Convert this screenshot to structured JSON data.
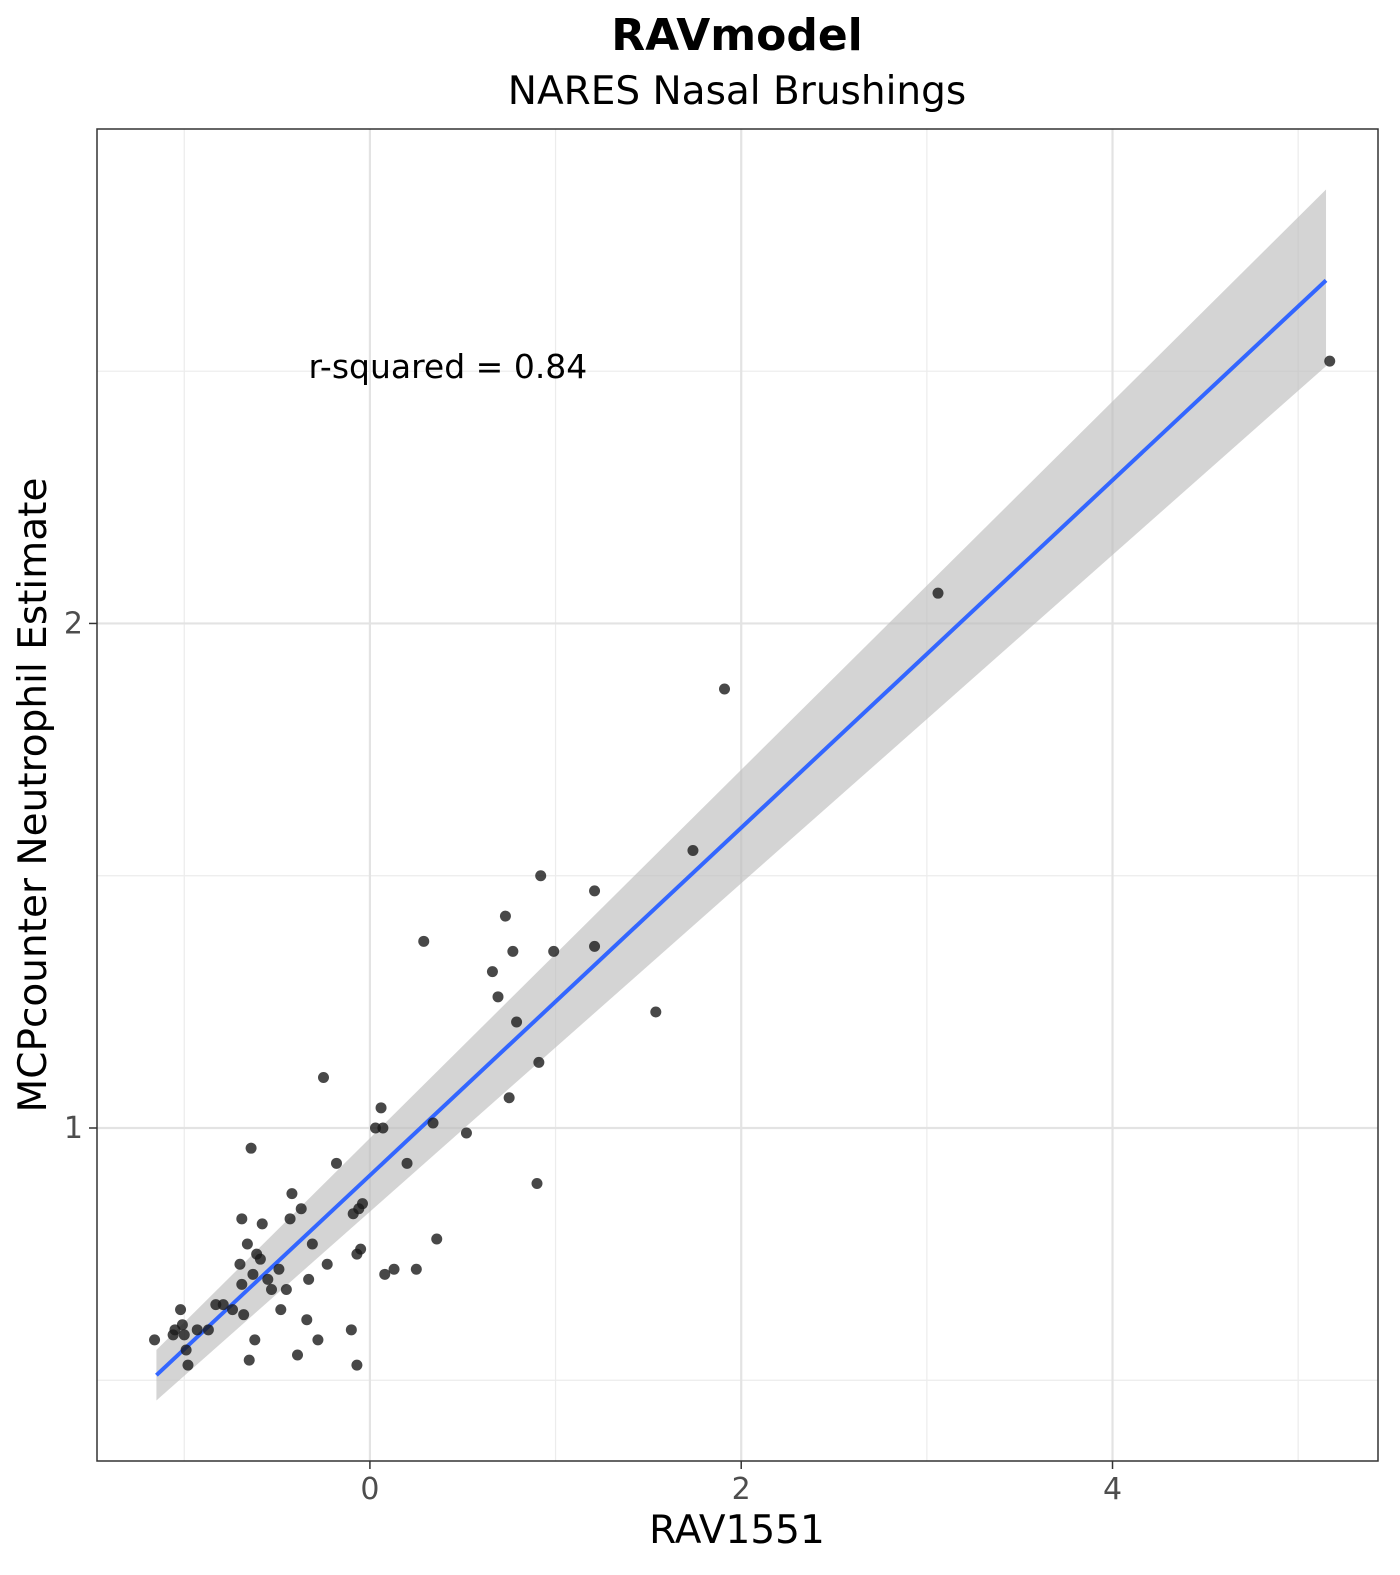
{
  "chart_data": {
    "type": "scatter",
    "title": "RAVmodel",
    "subtitle": "NARES Nasal Brushings",
    "xlabel": "RAV1551",
    "ylabel": "MCPcounter Neutrophil Estimate",
    "xlim": [
      -1.47,
      5.43
    ],
    "ylim": [
      0.34,
      2.98
    ],
    "x_ticks": [
      0,
      2,
      4
    ],
    "x_tick_labels": [
      "0",
      "2",
      "4"
    ],
    "y_ticks": [
      1,
      2
    ],
    "y_tick_labels": [
      "1",
      "2"
    ],
    "x_minor_grid": [
      -1,
      1,
      3,
      5
    ],
    "y_minor_grid": [
      0.5,
      1.5,
      2.5
    ],
    "grid": true,
    "annotation": {
      "text": "r-squared = 0.84",
      "x": 0.42,
      "y": 2.51
    },
    "fit": {
      "method": "linear",
      "x": [
        -1.15,
        5.15
      ],
      "y": [
        0.51,
        2.68
      ],
      "band_lower": [
        0.46,
        2.51
      ],
      "band_upper": [
        0.56,
        2.86
      ],
      "color": "#3366FF",
      "band_color": "#BDBDBD"
    },
    "point_color": "#1a1a1a",
    "points": [
      {
        "x": -1.16,
        "y": 0.58
      },
      {
        "x": -1.06,
        "y": 0.59
      },
      {
        "x": -1.05,
        "y": 0.6
      },
      {
        "x": -1.02,
        "y": 0.64
      },
      {
        "x": -1.01,
        "y": 0.61
      },
      {
        "x": -1.0,
        "y": 0.59
      },
      {
        "x": -0.99,
        "y": 0.56
      },
      {
        "x": -0.98,
        "y": 0.53
      },
      {
        "x": -0.93,
        "y": 0.6
      },
      {
        "x": -0.87,
        "y": 0.6
      },
      {
        "x": -0.83,
        "y": 0.65
      },
      {
        "x": -0.79,
        "y": 0.65
      },
      {
        "x": -0.74,
        "y": 0.64
      },
      {
        "x": -0.7,
        "y": 0.73
      },
      {
        "x": -0.69,
        "y": 0.69
      },
      {
        "x": -0.69,
        "y": 0.82
      },
      {
        "x": -0.68,
        "y": 0.63
      },
      {
        "x": -0.66,
        "y": 0.77
      },
      {
        "x": -0.65,
        "y": 0.54
      },
      {
        "x": -0.64,
        "y": 0.96
      },
      {
        "x": -0.63,
        "y": 0.71
      },
      {
        "x": -0.62,
        "y": 0.58
      },
      {
        "x": -0.61,
        "y": 0.75
      },
      {
        "x": -0.59,
        "y": 0.74
      },
      {
        "x": -0.58,
        "y": 0.81
      },
      {
        "x": -0.55,
        "y": 0.7
      },
      {
        "x": -0.53,
        "y": 0.68
      },
      {
        "x": -0.49,
        "y": 0.72
      },
      {
        "x": -0.48,
        "y": 0.64
      },
      {
        "x": -0.45,
        "y": 0.68
      },
      {
        "x": -0.43,
        "y": 0.82
      },
      {
        "x": -0.42,
        "y": 0.87
      },
      {
        "x": -0.39,
        "y": 0.55
      },
      {
        "x": -0.37,
        "y": 0.84
      },
      {
        "x": -0.34,
        "y": 0.62
      },
      {
        "x": -0.33,
        "y": 0.7
      },
      {
        "x": -0.31,
        "y": 0.77
      },
      {
        "x": -0.28,
        "y": 0.58
      },
      {
        "x": -0.25,
        "y": 1.1
      },
      {
        "x": -0.23,
        "y": 0.73
      },
      {
        "x": -0.18,
        "y": 0.93
      },
      {
        "x": -0.1,
        "y": 0.6
      },
      {
        "x": -0.09,
        "y": 0.83
      },
      {
        "x": -0.07,
        "y": 0.53
      },
      {
        "x": -0.07,
        "y": 0.75
      },
      {
        "x": -0.06,
        "y": 0.84
      },
      {
        "x": -0.05,
        "y": 0.76
      },
      {
        "x": -0.04,
        "y": 0.85
      },
      {
        "x": 0.03,
        "y": 1.0
      },
      {
        "x": 0.06,
        "y": 1.04
      },
      {
        "x": 0.07,
        "y": 1.0
      },
      {
        "x": 0.08,
        "y": 0.71
      },
      {
        "x": 0.13,
        "y": 0.72
      },
      {
        "x": 0.2,
        "y": 0.93
      },
      {
        "x": 0.25,
        "y": 0.72
      },
      {
        "x": 0.29,
        "y": 1.37
      },
      {
        "x": 0.34,
        "y": 1.01
      },
      {
        "x": 0.36,
        "y": 0.78
      },
      {
        "x": 0.52,
        "y": 0.99
      },
      {
        "x": 0.66,
        "y": 1.31
      },
      {
        "x": 0.69,
        "y": 1.26
      },
      {
        "x": 0.73,
        "y": 1.42
      },
      {
        "x": 0.75,
        "y": 1.06
      },
      {
        "x": 0.77,
        "y": 1.35
      },
      {
        "x": 0.79,
        "y": 1.21
      },
      {
        "x": 0.9,
        "y": 0.89
      },
      {
        "x": 0.91,
        "y": 1.13
      },
      {
        "x": 0.92,
        "y": 1.5
      },
      {
        "x": 0.99,
        "y": 1.35
      },
      {
        "x": 1.21,
        "y": 1.36
      },
      {
        "x": 1.21,
        "y": 1.47
      },
      {
        "x": 1.54,
        "y": 1.23
      },
      {
        "x": 1.74,
        "y": 1.55
      },
      {
        "x": 1.91,
        "y": 1.87
      },
      {
        "x": 3.06,
        "y": 2.06
      },
      {
        "x": 5.17,
        "y": 2.52
      }
    ]
  }
}
